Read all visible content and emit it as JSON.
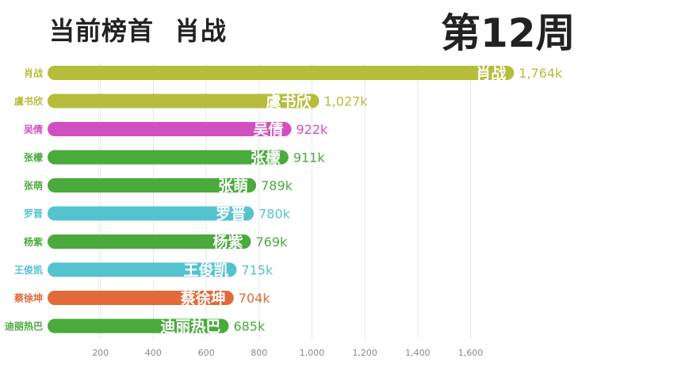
{
  "header": {
    "title_left": "当前榜首",
    "title_right": "肖战",
    "week": "第12周"
  },
  "chart_data": {
    "type": "bar",
    "orientation": "horizontal",
    "categories": [
      "肖战",
      "虞书欣",
      "吴倩",
      "张檬",
      "张萌",
      "罗晋",
      "杨紫",
      "王俊凯",
      "蔡徐坤",
      "迪丽热巴"
    ],
    "values": [
      1764,
      1027,
      922,
      911,
      789,
      780,
      769,
      715,
      704,
      685
    ],
    "value_labels": [
      "1,764k",
      "1,027k",
      "922k",
      "911k",
      "789k",
      "780k",
      "769k",
      "715k",
      "704k",
      "685k"
    ],
    "colors": [
      "#b5bd3b",
      "#b5bd3b",
      "#d24fc1",
      "#4aaa3c",
      "#4aaa3c",
      "#55c3cd",
      "#4aaa3c",
      "#55c3cd",
      "#e2693a",
      "#4aaa3c"
    ],
    "x_ticks": [
      200,
      400,
      600,
      800,
      1000,
      1200,
      1400,
      1600
    ],
    "x_tick_labels": [
      "200",
      "400",
      "600",
      "800",
      "1,000",
      "1,200",
      "1,400",
      "1,600"
    ],
    "xlim": [
      0,
      1800
    ],
    "grid": true
  }
}
